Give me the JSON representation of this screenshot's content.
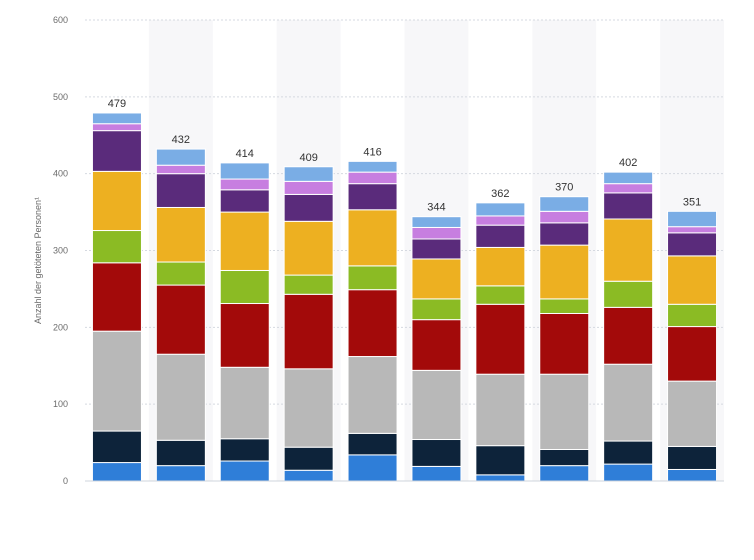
{
  "chart_data": {
    "type": "bar",
    "stacked": true,
    "ylabel": "Anzahl der getöteten Personen¹",
    "ylim": [
      0,
      600
    ],
    "yticks": [
      0,
      100,
      200,
      300,
      400,
      500,
      600
    ],
    "grid": true,
    "categories": [
      "",
      "",
      "",
      "",
      "",
      "",
      "",
      "",
      "",
      ""
    ],
    "totals": [
      479,
      432,
      414,
      409,
      416,
      344,
      362,
      370,
      402,
      351
    ],
    "series": [
      {
        "color": "#2f7ed8",
        "values": [
          24,
          20,
          26,
          14,
          34,
          19,
          8,
          20,
          22,
          15
        ]
      },
      {
        "color": "#0d233a",
        "values": [
          41,
          33,
          29,
          30,
          28,
          35,
          38,
          21,
          30,
          30
        ]
      },
      {
        "color": "#b8b8b8",
        "values": [
          130,
          112,
          93,
          102,
          100,
          90,
          93,
          98,
          100,
          85
        ]
      },
      {
        "color": "#a30a0a",
        "values": [
          89,
          90,
          83,
          97,
          87,
          66,
          91,
          79,
          74,
          71
        ]
      },
      {
        "color": "#8bbb24",
        "values": [
          42,
          30,
          43,
          25,
          31,
          27,
          24,
          19,
          34,
          29
        ]
      },
      {
        "color": "#edb021",
        "values": [
          77,
          71,
          76,
          70,
          73,
          52,
          50,
          70,
          81,
          63
        ]
      },
      {
        "color": "#5a2b7b",
        "values": [
          53,
          44,
          29,
          35,
          34,
          26,
          29,
          29,
          34,
          30
        ]
      },
      {
        "color": "#c77ee0",
        "values": [
          9,
          11,
          14,
          17,
          15,
          15,
          12,
          15,
          12,
          8
        ]
      },
      {
        "color": "#7aade5",
        "values": [
          14,
          21,
          21,
          19,
          14,
          14,
          17,
          19,
          15,
          20
        ]
      }
    ]
  }
}
